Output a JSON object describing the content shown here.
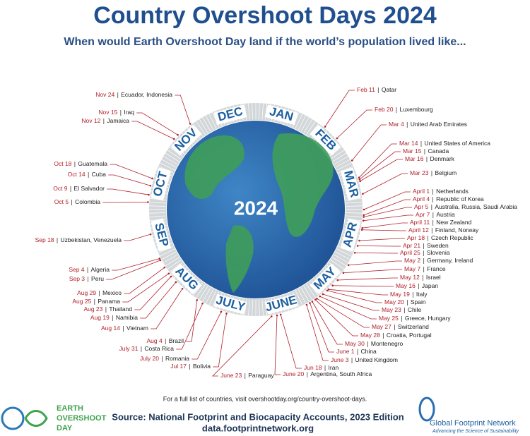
{
  "header": {
    "title": "Country Overshoot Days 2024",
    "subtitle": "When would Earth Overshoot Day land if the world’s population lived like..."
  },
  "center_label": "2024",
  "months": [
    "JAN",
    "FEB",
    "MAR",
    "APR",
    "MAY",
    "JUNE",
    "JULY",
    "AUG",
    "SEP",
    "OCT",
    "NOV",
    "DEC"
  ],
  "entries": [
    {
      "date": "Feb 11",
      "country": "Qatar"
    },
    {
      "date": "Feb 20",
      "country": "Luxembourg"
    },
    {
      "date": "Mar 4",
      "country": "United Arab Emirates"
    },
    {
      "date": "Mar 14",
      "country": "United States of America"
    },
    {
      "date": "Mar 15",
      "country": "Canada"
    },
    {
      "date": "Mar 16",
      "country": "Denmark"
    },
    {
      "date": "Mar 23",
      "country": "Belgium"
    },
    {
      "date": "April 1",
      "country": "Netherlands"
    },
    {
      "date": "April 4",
      "country": "Republic of Korea"
    },
    {
      "date": "Apr 5",
      "country": "Australia, Russia, Saudi Arabia"
    },
    {
      "date": "Apr 7",
      "country": "Austria"
    },
    {
      "date": "April 11",
      "country": "New Zealand"
    },
    {
      "date": "April 12",
      "country": "Finland, Norway"
    },
    {
      "date": "Apr 18",
      "country": "Czech Republic"
    },
    {
      "date": "Apr 21",
      "country": "Sweden"
    },
    {
      "date": "April 25",
      "country": "Slovenia"
    },
    {
      "date": "May 2",
      "country": "Germany, Ireland"
    },
    {
      "date": "May 7",
      "country": "France"
    },
    {
      "date": "May 12",
      "country": "Israel"
    },
    {
      "date": "May 16",
      "country": "Japan"
    },
    {
      "date": "May 19",
      "country": "Italy"
    },
    {
      "date": "May 20",
      "country": "Spain"
    },
    {
      "date": "May 23",
      "country": "Chile"
    },
    {
      "date": "May 25",
      "country": "Greece, Hungary"
    },
    {
      "date": "May 27",
      "country": "Switzerland"
    },
    {
      "date": "May 28",
      "country": "Croatia, Portugal"
    },
    {
      "date": "May 30",
      "country": "Montenegro"
    },
    {
      "date": "June 1",
      "country": "China"
    },
    {
      "date": "June 3",
      "country": "United Kingdom"
    },
    {
      "date": "Jun 18",
      "country": "Iran"
    },
    {
      "date": "June 20",
      "country": "Argentina, South Africa"
    },
    {
      "date": "June 23",
      "country": "Paraguay"
    },
    {
      "date": "Jul 17",
      "country": "Bolivia"
    },
    {
      "date": "July 20",
      "country": "Romania"
    },
    {
      "date": "July 31",
      "country": "Costa Rica"
    },
    {
      "date": "Aug 4",
      "country": "Brazil"
    },
    {
      "date": "Aug 14",
      "country": "Vietnam"
    },
    {
      "date": "Aug 19",
      "country": "Namibia"
    },
    {
      "date": "Aug 23",
      "country": "Thailand"
    },
    {
      "date": "Aug 25",
      "country": "Panama"
    },
    {
      "date": "Aug 29",
      "country": "Mexico"
    },
    {
      "date": "Sep 3",
      "country": "Peru"
    },
    {
      "date": "Sep 4",
      "country": "Algeria"
    },
    {
      "date": "Sep 18",
      "country": "Uzbekistan, Venezuela"
    },
    {
      "date": "Oct 5",
      "country": "Colombia"
    },
    {
      "date": "Oct 9",
      "country": "El Salvador"
    },
    {
      "date": "Oct 14",
      "country": "Cuba"
    },
    {
      "date": "Oct 18",
      "country": "Guatemala"
    },
    {
      "date": "Nov 12",
      "country": "Jamaica"
    },
    {
      "date": "Nov 15",
      "country": "Iraq"
    },
    {
      "date": "Nov 24",
      "country": "Ecuador, Indonesia"
    }
  ],
  "footer": {
    "note": "For a full list of countries, visit overshootday.org/country-overshoot-days.",
    "logo_left": [
      "EARTH",
      "OVERSHOOT",
      "DAY"
    ],
    "source": "Source: National Footprint and Biocapacity Accounts, 2023 Edition",
    "url": "data.footprintnetwork.org",
    "logo_right": {
      "name": "Global Footprint Network",
      "tagline": "Advancing the Science of Sustainability"
    }
  }
}
